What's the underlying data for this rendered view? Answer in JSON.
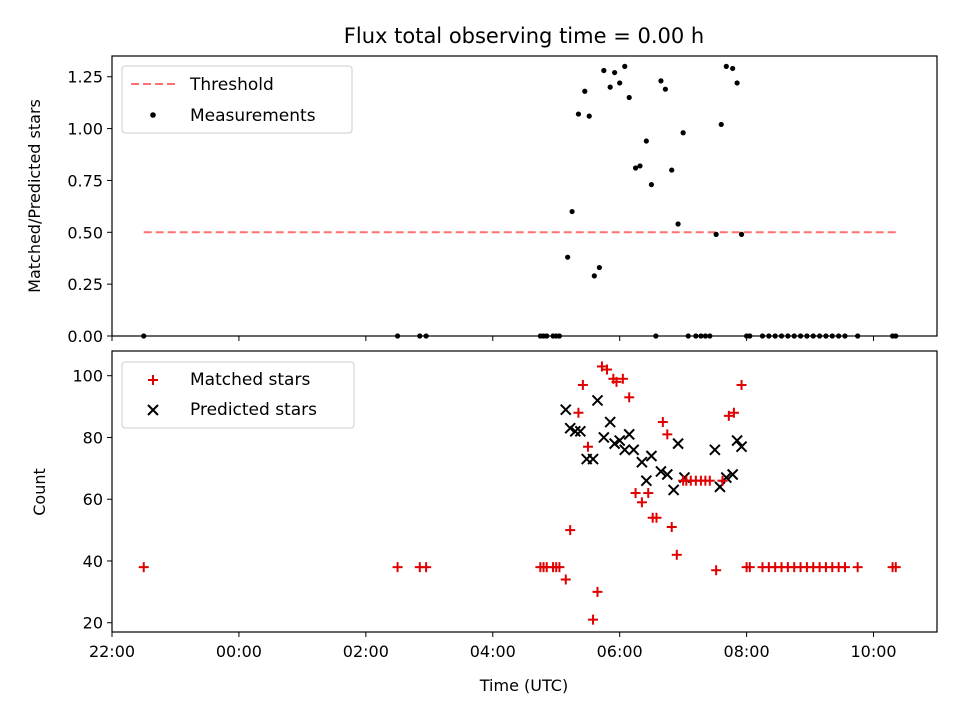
{
  "title": "Flux total observing time = 0.00 h",
  "colors": {
    "threshold": "#ff7070",
    "matched": "#e00000",
    "predicted": "#000000",
    "measurement": "#000000"
  },
  "chart_data": [
    {
      "type": "scatter",
      "name": "ratio",
      "ylabel": "Matched/Predicted stars",
      "xlim": [
        -2,
        11
      ],
      "ylim": [
        0,
        1.35
      ],
      "yticks": [
        0,
        0.25,
        0.5,
        0.75,
        1.0,
        1.25
      ],
      "ytick_labels": [
        "0.00",
        "0.25",
        "0.50",
        "0.75",
        "1.00",
        "1.25"
      ],
      "legend": {
        "position": "upper-left",
        "entries": [
          "Threshold",
          "Measurements"
        ]
      },
      "threshold": {
        "name": "Threshold",
        "value": 0.5,
        "x_range": [
          -1.5,
          10.4
        ]
      },
      "measurements": {
        "name": "Measurements",
        "x": [
          -1.5,
          2.5,
          2.85,
          2.95,
          4.75,
          4.8,
          4.85,
          4.95,
          5.0,
          5.05,
          5.18,
          5.25,
          5.35,
          5.45,
          5.52,
          5.6,
          5.68,
          5.75,
          5.85,
          5.92,
          6.0,
          6.08,
          6.15,
          6.25,
          6.32,
          6.42,
          6.5,
          6.57,
          6.65,
          6.72,
          6.82,
          6.92,
          7.0,
          7.08,
          7.2,
          7.28,
          7.35,
          7.42,
          7.52,
          7.6,
          7.68,
          7.78,
          7.85,
          7.92,
          8.0,
          8.05,
          8.25,
          8.35,
          8.45,
          8.55,
          8.65,
          8.75,
          8.85,
          8.95,
          9.05,
          9.15,
          9.25,
          9.35,
          9.45,
          9.55,
          9.75,
          10.3,
          10.35
        ],
        "y": [
          0,
          0,
          0,
          0,
          0,
          0,
          0,
          0,
          0,
          0,
          0.38,
          0.6,
          1.07,
          1.18,
          1.06,
          0.29,
          0.33,
          1.28,
          1.2,
          1.27,
          1.22,
          1.3,
          1.15,
          0.81,
          0.82,
          0.94,
          0.73,
          0,
          1.23,
          1.19,
          0.8,
          0.54,
          0.98,
          0,
          0,
          0,
          0,
          0,
          0.49,
          1.02,
          1.3,
          1.29,
          1.22,
          0.49,
          0,
          0,
          0,
          0,
          0,
          0,
          0,
          0,
          0,
          0,
          0,
          0,
          0,
          0,
          0,
          0,
          0,
          0,
          0
        ]
      }
    },
    {
      "type": "scatter",
      "name": "counts",
      "ylabel": "Count",
      "xlabel": "Time (UTC)",
      "xlim": [
        -2,
        11
      ],
      "ylim": [
        17,
        108
      ],
      "yticks": [
        20,
        40,
        60,
        80,
        100
      ],
      "ytick_labels": [
        "20",
        "40",
        "60",
        "80",
        "100"
      ],
      "xticks": [
        -2,
        0,
        2,
        4,
        6,
        8,
        10
      ],
      "xtick_labels": [
        "22:00",
        "00:00",
        "02:00",
        "04:00",
        "06:00",
        "08:00",
        "10:00"
      ],
      "legend": {
        "position": "upper-left",
        "entries": [
          "Matched stars",
          "Predicted stars"
        ]
      },
      "matched": {
        "name": "Matched stars",
        "x": [
          -1.5,
          2.5,
          2.85,
          2.95,
          4.75,
          4.8,
          4.85,
          4.95,
          5.0,
          5.05,
          5.15,
          5.22,
          5.35,
          5.42,
          5.5,
          5.58,
          5.65,
          5.72,
          5.8,
          5.9,
          5.95,
          6.05,
          6.15,
          6.25,
          6.35,
          6.45,
          6.52,
          6.58,
          6.68,
          6.75,
          6.82,
          6.9,
          7.0,
          7.05,
          7.12,
          7.2,
          7.28,
          7.35,
          7.42,
          7.52,
          7.62,
          7.72,
          7.8,
          7.92,
          8.0,
          8.05,
          8.25,
          8.35,
          8.45,
          8.55,
          8.65,
          8.75,
          8.85,
          8.95,
          9.05,
          9.15,
          9.25,
          9.35,
          9.45,
          9.55,
          9.75,
          10.3,
          10.35
        ],
        "y": [
          38,
          38,
          38,
          38,
          38,
          38,
          38,
          38,
          38,
          38,
          34,
          50,
          88,
          97,
          77,
          21,
          30,
          103,
          102,
          99,
          98,
          99,
          93,
          62,
          59,
          62,
          54,
          54,
          85,
          81,
          51,
          42,
          66,
          66,
          66,
          66,
          66,
          66,
          66,
          37,
          66,
          87,
          88,
          97,
          38,
          38,
          38,
          38,
          38,
          38,
          38,
          38,
          38,
          38,
          38,
          38,
          38,
          38,
          38,
          38,
          38,
          38,
          38
        ]
      },
      "predicted": {
        "name": "Predicted stars",
        "x": [
          5.15,
          5.22,
          5.3,
          5.38,
          5.48,
          5.58,
          5.65,
          5.75,
          5.85,
          5.92,
          6.0,
          6.08,
          6.15,
          6.22,
          6.35,
          6.42,
          6.5,
          6.65,
          6.75,
          6.85,
          6.92,
          7.02,
          7.5,
          7.58,
          7.68,
          7.78,
          7.85,
          7.92
        ],
        "y": [
          89,
          83,
          82,
          82,
          73,
          73,
          92,
          80,
          85,
          78,
          79,
          76,
          81,
          76,
          72,
          66,
          74,
          69,
          68,
          63,
          78,
          67,
          76,
          64,
          67,
          68,
          79,
          77
        ]
      }
    }
  ]
}
